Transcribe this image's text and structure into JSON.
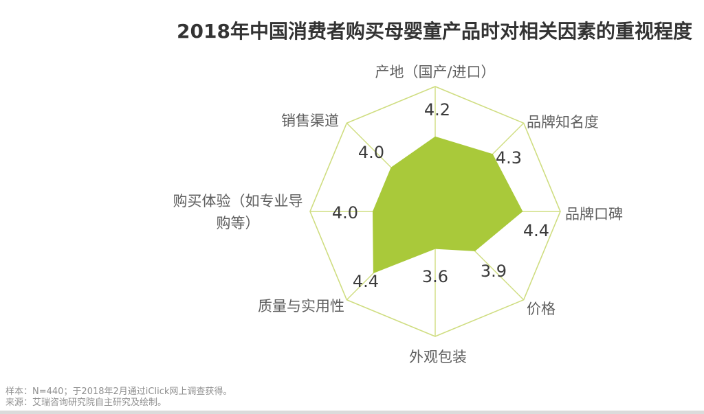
{
  "title": "2018年中国消费者购买母婴童产品时对相关因素的重视程度",
  "footer": {
    "sample": "样本：N=440；于2018年2月通过iClick网上调查获得。",
    "source": "来源：艾瑞咨询研究院自主研究及绘制。"
  },
  "colors": {
    "background": "#ffffff",
    "chart_fill": "#a9c93a",
    "grid_line": "#cfdd80",
    "title_text": "#333333",
    "axis_label_text": "#5e5e5e",
    "value_text": "#3b3b3b",
    "footer_text": "#8f8f8f",
    "bottom_bar": "#dbdbdb"
  },
  "chart_data": {
    "type": "radar",
    "title": "2018年中国消费者购买母婴童产品时对相关因素的重视程度",
    "categories": [
      "产地（国产/进口）",
      "品牌知名度",
      "品牌口碑",
      "价格",
      "外观包装",
      "质量与实用性",
      "购买体验（如专业导购等）",
      "销售渠道"
    ],
    "values": [
      4.2,
      4.3,
      4.4,
      3.9,
      3.6,
      4.4,
      4.0,
      4.0
    ],
    "value_labels": [
      "4.2",
      "4.3",
      "4.4",
      "3.9",
      "3.6",
      "4.4",
      "4.0",
      "4.0"
    ],
    "axis_order": "clockwise starting at top vertex",
    "scale": {
      "center_value": 3.0,
      "outer_value": 5.0
    },
    "grid": {
      "shape": "octagon",
      "rings": 1,
      "spokes": true,
      "inner_rings": false
    },
    "legend": "none",
    "series_count": 1
  }
}
